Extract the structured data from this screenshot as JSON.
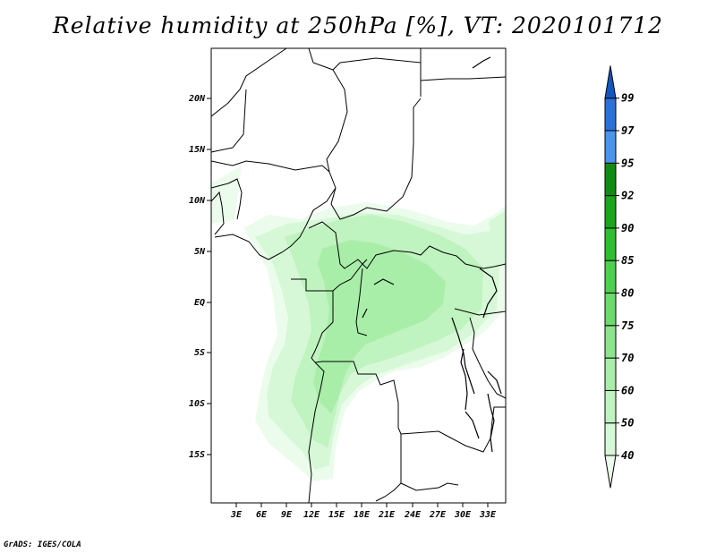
{
  "title": "Relative humidity at 250hPa [%], VT: 2020101712",
  "credit": "GrADS: IGES/COLA",
  "lat_labels": [
    "20N",
    "15N",
    "10N",
    "5N",
    "EQ",
    "5S",
    "10S",
    "15S"
  ],
  "lon_labels": [
    "3E",
    "6E",
    "9E",
    "12E",
    "15E",
    "18E",
    "21E",
    "24E",
    "27E",
    "30E",
    "33E"
  ],
  "colorbar": {
    "levels": [
      "40",
      "50",
      "60",
      "70",
      "75",
      "80",
      "85",
      "90",
      "92",
      "95",
      "97",
      "99"
    ],
    "colors": [
      "#ecfcec",
      "#d6f8d6",
      "#bff3bf",
      "#a8eea8",
      "#8be58b",
      "#6cdb6c",
      "#4ecf4e",
      "#2fbe2f",
      "#1aa51a",
      "#118c11",
      "#4a95ea",
      "#2a72d8",
      "#1456c0"
    ]
  }
}
